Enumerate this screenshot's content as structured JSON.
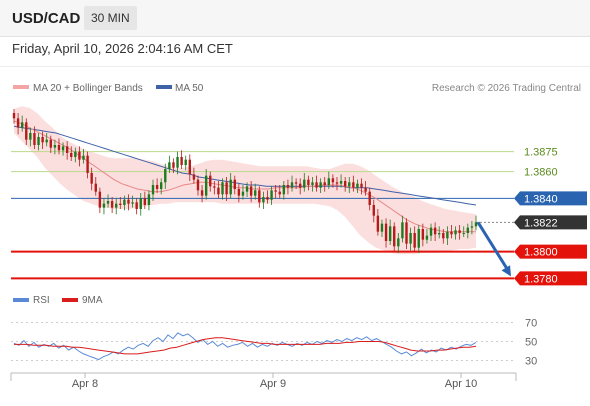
{
  "header": {
    "pair": "USD/CAD",
    "timeframe": "30 MIN"
  },
  "datetime": "Friday, April 10, 2026 2:04:16 AM CET",
  "credit": "Research © 2026 Trading Central",
  "colors": {
    "bollinger": "#f3a4a4",
    "ma20": "#e98686",
    "ma50": "#3e61a8",
    "support": "#e3120b",
    "resistance_green": "#b9d989",
    "pivot": "#2a64b0",
    "last": "#333333",
    "up": "#1e7a1e",
    "down": "#b51b1b",
    "rsi": "#5a8ad6",
    "rsi_ma": "#d91c1c"
  },
  "chart_data": [
    {
      "type": "line",
      "instrument": "USD/CAD",
      "legend": [
        {
          "name": "MA 20 + Bollinger Bands",
          "color": "#f3a4a4"
        },
        {
          "name": "MA 50",
          "color": "#3e61a8"
        }
      ],
      "x_ticks": [
        "Apr 8",
        "Apr 9",
        "Apr 10"
      ],
      "ylim": [
        1.3772,
        1.3916
      ],
      "levels": [
        {
          "label": "1.3875",
          "value": 1.3875,
          "kind": "resistance",
          "color": "#b9d989",
          "text_color": "#5a8c1e"
        },
        {
          "label": "1.3860",
          "value": 1.386,
          "kind": "resistance",
          "color": "#b9d989",
          "text_color": "#5a8c1e"
        },
        {
          "label": "1.3840",
          "value": 1.384,
          "kind": "pivot",
          "color": "#2a64b0",
          "text_color": "#ffffff"
        },
        {
          "label": "1.3822",
          "value": 1.3822,
          "kind": "last",
          "color": "#333333",
          "text_color": "#ffffff"
        },
        {
          "label": "1.3800",
          "value": 1.38,
          "kind": "support",
          "color": "#e3120b",
          "text_color": "#ffffff"
        },
        {
          "label": "1.3780",
          "value": 1.378,
          "kind": "support",
          "color": "#e3120b",
          "text_color": "#ffffff"
        }
      ],
      "closes": [
        1.39,
        1.3893,
        1.3897,
        1.3884,
        1.3889,
        1.388,
        1.3886,
        1.3882,
        1.3884,
        1.3878,
        1.388,
        1.3876,
        1.3879,
        1.3874,
        1.3871,
        1.3875,
        1.3869,
        1.3872,
        1.3859,
        1.3851,
        1.3845,
        1.3833,
        1.3836,
        1.3838,
        1.3833,
        1.3836,
        1.3835,
        1.3839,
        1.3836,
        1.3837,
        1.3832,
        1.384,
        1.3835,
        1.3843,
        1.385,
        1.3847,
        1.3852,
        1.3862,
        1.3867,
        1.3863,
        1.3871,
        1.3865,
        1.3869,
        1.3858,
        1.3854,
        1.3846,
        1.3842,
        1.3857,
        1.3849,
        1.3848,
        1.3843,
        1.3852,
        1.3843,
        1.3854,
        1.3847,
        1.3842,
        1.3845,
        1.3849,
        1.3842,
        1.3846,
        1.3837,
        1.3841,
        1.3839,
        1.3846,
        1.3845,
        1.3843,
        1.385,
        1.3848,
        1.3852,
        1.3851,
        1.3848,
        1.3854,
        1.385,
        1.3852,
        1.3848,
        1.3852,
        1.385,
        1.3855,
        1.3852,
        1.3851,
        1.3853,
        1.3849,
        1.3852,
        1.3848,
        1.3851,
        1.3848,
        1.3845,
        1.3835,
        1.3827,
        1.3815,
        1.3821,
        1.3808,
        1.3819,
        1.3804,
        1.381,
        1.3822,
        1.3806,
        1.3814,
        1.3803,
        1.3817,
        1.3809,
        1.3812,
        1.3818,
        1.3813,
        1.3814,
        1.381,
        1.3815,
        1.3813,
        1.3816,
        1.3814,
        1.3814,
        1.3818,
        1.3819,
        1.3822
      ],
      "ma20": [
        1.3898,
        1.3896,
        1.3893,
        1.389,
        1.3887,
        1.3884,
        1.3881,
        1.3878,
        1.3874,
        1.387,
        1.3866,
        1.3862,
        1.3858,
        1.3854,
        1.3851,
        1.3849,
        1.3847,
        1.3846,
        1.3845,
        1.3845,
        1.3846,
        1.3848,
        1.385,
        1.3851,
        1.3852,
        1.3852,
        1.3851,
        1.385,
        1.3849,
        1.3848,
        1.3848,
        1.3847,
        1.3847,
        1.3847,
        1.3848,
        1.3848,
        1.3848,
        1.3848,
        1.3849,
        1.3849,
        1.385,
        1.385,
        1.385,
        1.3849,
        1.3848,
        1.3846,
        1.3843,
        1.384,
        1.3836,
        1.3832,
        1.3828,
        1.3824,
        1.3821,
        1.3819,
        1.3817,
        1.3816,
        1.3815,
        1.3815,
        1.3815,
        1.3815,
        1.3815
      ],
      "ma50": [
        1.3894,
        1.3893,
        1.3892,
        1.3891,
        1.389,
        1.3889,
        1.3887,
        1.3885,
        1.3883,
        1.3881,
        1.3879,
        1.3877,
        1.3875,
        1.3873,
        1.3871,
        1.3869,
        1.3867,
        1.3865,
        1.3863,
        1.3861,
        1.3859,
        1.3858,
        1.3856,
        1.3855,
        1.3854,
        1.3853,
        1.3852,
        1.3851,
        1.385,
        1.385,
        1.3849,
        1.3849,
        1.3849,
        1.3849,
        1.3849,
        1.3849,
        1.3849,
        1.3849,
        1.3849,
        1.3849,
        1.3848,
        1.3848,
        1.3848,
        1.3847,
        1.3846,
        1.3845,
        1.3844,
        1.3843,
        1.3842,
        1.3841,
        1.384,
        1.3839,
        1.3838,
        1.3837,
        1.3836,
        1.3835
      ],
      "bollinger_upper": [
        1.3907,
        1.3909,
        1.3908,
        1.3904,
        1.3898,
        1.3893,
        1.3887,
        1.3883,
        1.388,
        1.3877,
        1.3875,
        1.3873,
        1.3871,
        1.387,
        1.387,
        1.387,
        1.387,
        1.3869,
        1.3868,
        1.3866,
        1.3864,
        1.3863,
        1.3863,
        1.3864,
        1.3866,
        1.3868,
        1.3869,
        1.3869,
        1.3868,
        1.3867,
        1.3866,
        1.3865,
        1.3864,
        1.3864,
        1.3864,
        1.3864,
        1.3864,
        1.3864,
        1.3864,
        1.3863,
        1.3862,
        1.3862,
        1.3864,
        1.3866,
        1.3866,
        1.3864,
        1.3861,
        1.3857,
        1.3853,
        1.3849,
        1.3846,
        1.3843,
        1.3841,
        1.3838,
        1.3836,
        1.3834,
        1.3832,
        1.3831,
        1.383,
        1.3829,
        1.3828
      ],
      "bollinger_lower": [
        1.3889,
        1.3883,
        1.3877,
        1.3871,
        1.3863,
        1.3857,
        1.3851,
        1.3846,
        1.3842,
        1.3838,
        1.3836,
        1.3834,
        1.3833,
        1.3832,
        1.3832,
        1.3832,
        1.3833,
        1.3834,
        1.3835,
        1.3836,
        1.3836,
        1.3837,
        1.3837,
        1.3837,
        1.3837,
        1.3837,
        1.3837,
        1.3836,
        1.3836,
        1.3836,
        1.3836,
        1.3836,
        1.3836,
        1.3836,
        1.3836,
        1.3836,
        1.3836,
        1.3836,
        1.3836,
        1.3836,
        1.3835,
        1.3834,
        1.3831,
        1.3826,
        1.3819,
        1.3812,
        1.3807,
        1.3803,
        1.3801,
        1.3799,
        1.3798,
        1.3798,
        1.3798,
        1.3799,
        1.3799,
        1.3799,
        1.38,
        1.3801,
        1.3802,
        1.3802,
        1.3803
      ],
      "forecast": {
        "from": 1.3822,
        "to": 1.378
      }
    },
    {
      "type": "line",
      "name": "RSI",
      "legend": [
        {
          "name": "RSI",
          "color": "#5a8ad6"
        },
        {
          "name": "9MA",
          "color": "#d91c1c"
        }
      ],
      "ylim": [
        20,
        80
      ],
      "y_ticks": [
        "70",
        "50",
        "30"
      ],
      "y_tick_values": [
        70,
        50,
        30
      ],
      "rsi": [
        48,
        46,
        51,
        45,
        49,
        44,
        47,
        45,
        48,
        43,
        46,
        41,
        44,
        40,
        37,
        35,
        33,
        31,
        34,
        36,
        39,
        37,
        41,
        44,
        42,
        46,
        48,
        45,
        51,
        54,
        50,
        57,
        53,
        59,
        56,
        58,
        54,
        49,
        52,
        47,
        50,
        45,
        48,
        44,
        46,
        47,
        49,
        45,
        48,
        44,
        47,
        45,
        48,
        46,
        49,
        47,
        45,
        48,
        46,
        49,
        47,
        50,
        48,
        51,
        49,
        52,
        50,
        53,
        51,
        54,
        52,
        55,
        51,
        53,
        50,
        47,
        44,
        40,
        37,
        39,
        35,
        38,
        42,
        38,
        41,
        39,
        43,
        41,
        44,
        42,
        45,
        47,
        46,
        49
      ],
      "rsi_ma": [
        47,
        47,
        47,
        46,
        46,
        46,
        45,
        45,
        45,
        44,
        44,
        43,
        42,
        41,
        40,
        39,
        38,
        37,
        37,
        37,
        38,
        39,
        40,
        41,
        43,
        44,
        46,
        48,
        50,
        52,
        53,
        54,
        54,
        53,
        52,
        51,
        50,
        49,
        48,
        48,
        47,
        47,
        47,
        47,
        47,
        47,
        47,
        47,
        48,
        48,
        48,
        49,
        49,
        50,
        50,
        50,
        50,
        49,
        47,
        45,
        43,
        41,
        40,
        40,
        40,
        41,
        41,
        42,
        43,
        44,
        44,
        45
      ]
    }
  ]
}
